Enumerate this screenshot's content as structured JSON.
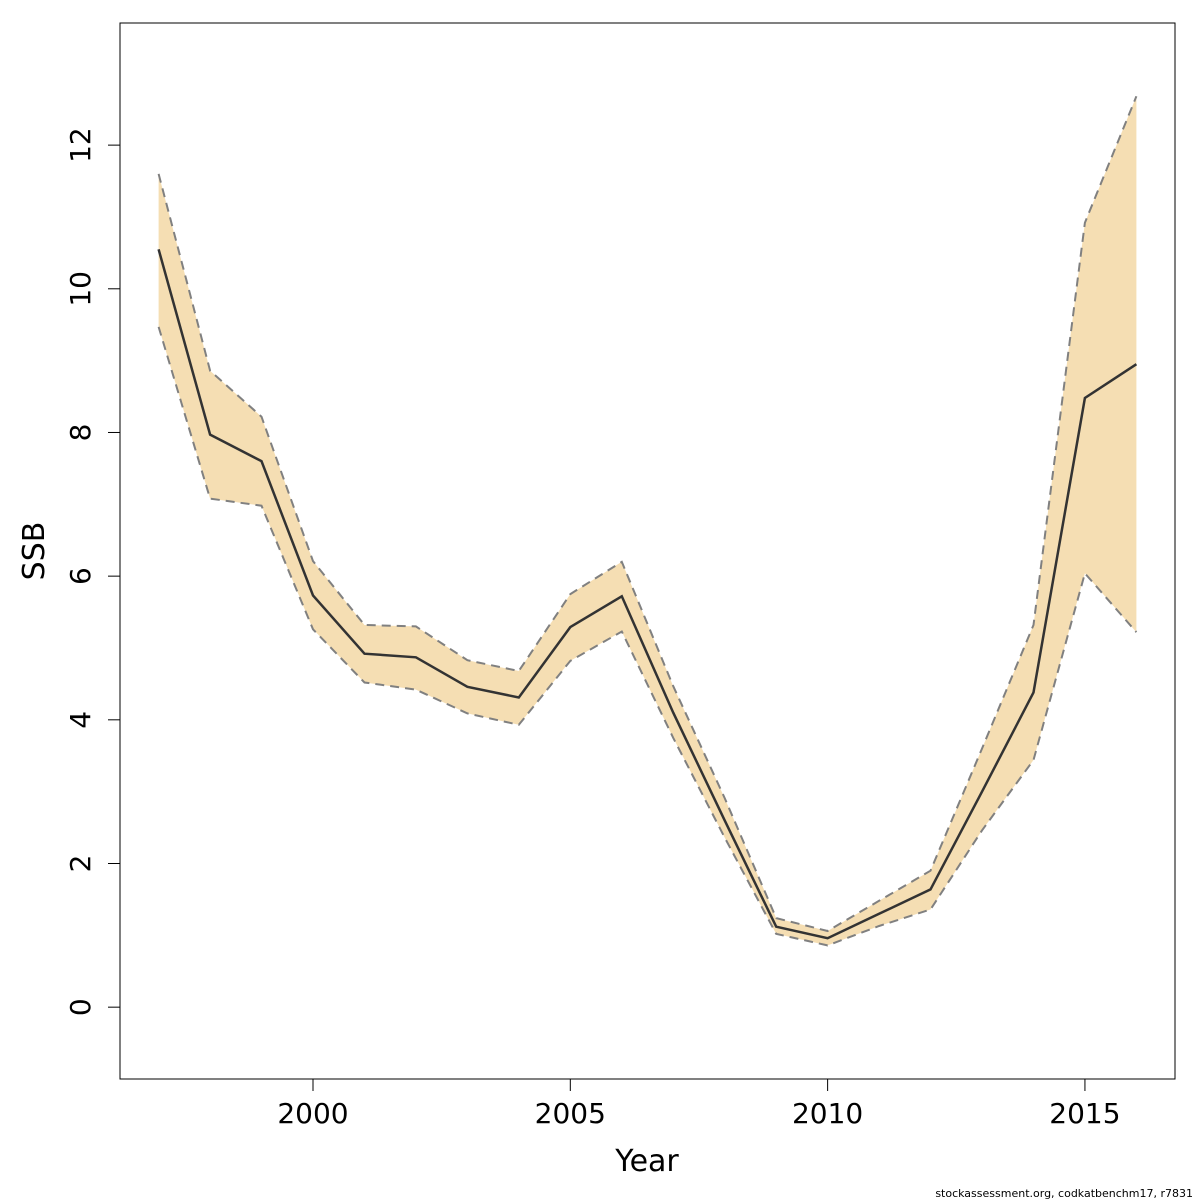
{
  "chart_data": {
    "type": "line",
    "title": "",
    "xlabel": "Year",
    "ylabel": "SSB",
    "xlim": [
      1996.25,
      2016.75
    ],
    "ylim": [
      -1.0,
      13.7
    ],
    "xticks": [
      2000,
      2005,
      2010,
      2015
    ],
    "yticks": [
      0,
      2,
      4,
      6,
      8,
      10,
      12
    ],
    "grid": false,
    "colors": {
      "band": "#f5deb3",
      "line": "#333333",
      "bound": "#808080"
    },
    "x": [
      1997,
      1998,
      1999,
      2000,
      2001,
      2002,
      2003,
      2004,
      2005,
      2006,
      2007,
      2008,
      2009,
      2010,
      2011,
      2012,
      2013,
      2014,
      2015,
      2016
    ],
    "series": [
      {
        "values": [
          10.55,
          7.97,
          7.6,
          5.73,
          4.92,
          4.87,
          4.46,
          4.31,
          5.29,
          5.72,
          4.1,
          2.6,
          1.12,
          0.96,
          1.3,
          1.64,
          3.0,
          4.38,
          8.48,
          8.95
        ]
      }
    ],
    "lower": [
      9.47,
      7.08,
      6.98,
      5.26,
      4.52,
      4.42,
      4.09,
      3.93,
      4.82,
      5.23,
      3.75,
      2.36,
      1.02,
      0.86,
      1.13,
      1.36,
      2.46,
      3.44,
      6.04,
      5.22
    ],
    "upper": [
      11.6,
      8.86,
      8.22,
      6.21,
      5.32,
      5.3,
      4.83,
      4.68,
      5.75,
      6.2,
      4.47,
      2.91,
      1.24,
      1.06,
      1.48,
      1.9,
      3.6,
      5.32,
      10.92,
      12.68
    ]
  },
  "credit": "stockassessment.org, codkatbenchm17, r7831"
}
